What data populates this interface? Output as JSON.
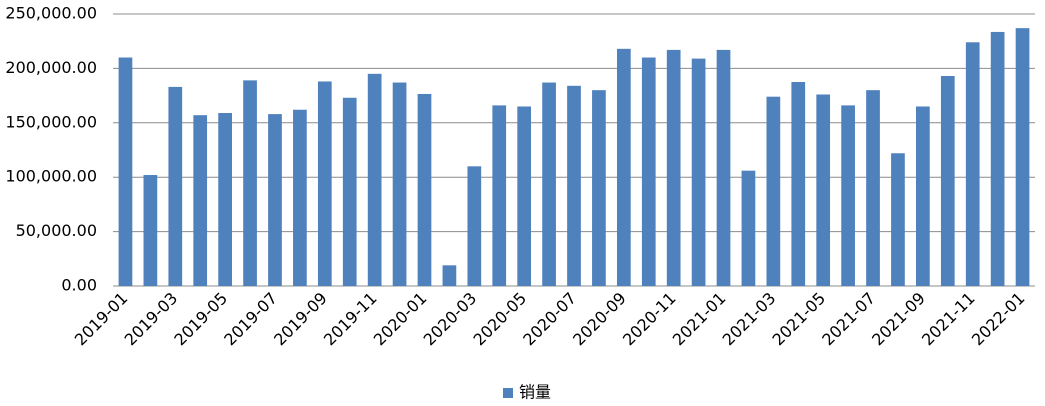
{
  "chart_data": {
    "type": "bar",
    "categories": [
      "2019-01",
      null,
      "2019-03",
      null,
      "2019-05",
      null,
      "2019-07",
      null,
      "2019-09",
      null,
      "2019-11",
      null,
      "2020-01",
      null,
      "2020-03",
      null,
      "2020-05",
      null,
      "2020-07",
      null,
      "2020-09",
      null,
      "2020-11",
      null,
      "2021-01",
      null,
      "2021-03",
      null,
      "2021-05",
      null,
      "2021-07",
      null,
      "2021-09",
      null,
      "2021-11",
      null,
      "2022-01"
    ],
    "series": [
      {
        "name": "销量",
        "color": "#4f81bd",
        "values": [
          210000,
          102000,
          183000,
          157000,
          159000,
          189000,
          158000,
          162000,
          188000,
          173000,
          195000,
          187000,
          176500,
          19000,
          110000,
          166000,
          165000,
          187000,
          184000,
          180000,
          218000,
          210000,
          217000,
          209000,
          217000,
          106000,
          174000,
          187500,
          176000,
          166000,
          180000,
          122000,
          165000,
          193000,
          224000,
          233500,
          237000
        ]
      }
    ],
    "ylim": [
      0,
      250000
    ],
    "yticks": [
      {
        "value": 0,
        "label": "0.00"
      },
      {
        "value": 50000,
        "label": "50,000.00"
      },
      {
        "value": 100000,
        "label": "100,000.00"
      },
      {
        "value": 150000,
        "label": "150,000.00"
      },
      {
        "value": 200000,
        "label": "200,000.00"
      },
      {
        "value": 250000,
        "label": "250,000.00"
      }
    ],
    "grid": true,
    "legend": "bottom"
  }
}
